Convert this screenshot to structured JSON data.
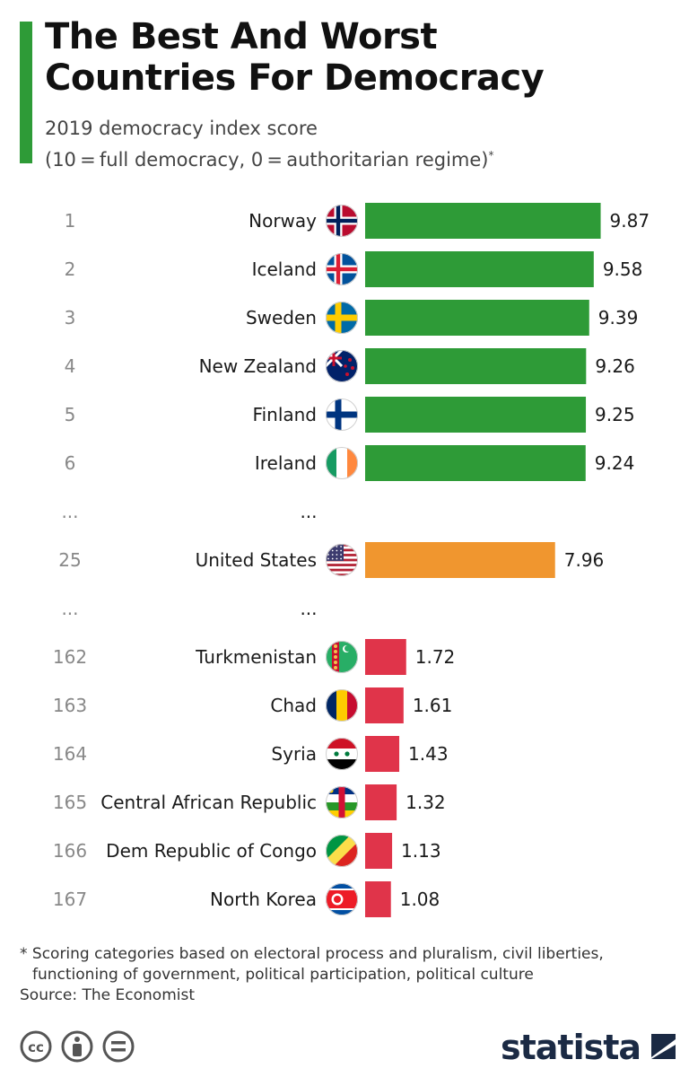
{
  "header": {
    "title_line1": "The Best And Worst",
    "title_line2": "Countries For Democracy",
    "subtitle_line1": "2019 democracy index score",
    "subtitle_line2": "(10 = full democracy, 0 = authoritarian regime)",
    "subtitle_mark": "*"
  },
  "colors": {
    "accent": "#2e9b37",
    "best": "#2e9b37",
    "us": "#f0962f",
    "worst": "#e0344a",
    "rank_text": "#888888",
    "label_text": "#1a1a1a"
  },
  "chart_data": {
    "type": "bar",
    "orientation": "horizontal",
    "title": "The Best And Worst Countries For Democracy",
    "subtitle": "2019 democracy index score (10 = full democracy, 0 = authoritarian regime)*",
    "xlim": [
      0,
      10
    ],
    "grid": false,
    "rows": [
      {
        "kind": "bar",
        "rank": "1",
        "country": "Norway",
        "value": 9.87,
        "group": "best",
        "flag": "norway-flag-icon"
      },
      {
        "kind": "bar",
        "rank": "2",
        "country": "Iceland",
        "value": 9.58,
        "group": "best",
        "flag": "iceland-flag-icon"
      },
      {
        "kind": "bar",
        "rank": "3",
        "country": "Sweden",
        "value": 9.39,
        "group": "best",
        "flag": "sweden-flag-icon"
      },
      {
        "kind": "bar",
        "rank": "4",
        "country": "New Zealand",
        "value": 9.26,
        "group": "best",
        "flag": "new-zealand-flag-icon"
      },
      {
        "kind": "bar",
        "rank": "5",
        "country": "Finland",
        "value": 9.25,
        "group": "best",
        "flag": "finland-flag-icon"
      },
      {
        "kind": "bar",
        "rank": "6",
        "country": "Ireland",
        "value": 9.24,
        "group": "best",
        "flag": "ireland-flag-icon"
      },
      {
        "kind": "gap",
        "rank": "...",
        "country": "..."
      },
      {
        "kind": "bar",
        "rank": "25",
        "country": "United States",
        "value": 7.96,
        "group": "us",
        "flag": "united-states-flag-icon"
      },
      {
        "kind": "gap",
        "rank": "...",
        "country": "..."
      },
      {
        "kind": "bar",
        "rank": "162",
        "country": "Turkmenistan",
        "value": 1.72,
        "group": "worst",
        "flag": "turkmenistan-flag-icon"
      },
      {
        "kind": "bar",
        "rank": "163",
        "country": "Chad",
        "value": 1.61,
        "group": "worst",
        "flag": "chad-flag-icon"
      },
      {
        "kind": "bar",
        "rank": "164",
        "country": "Syria",
        "value": 1.43,
        "group": "worst",
        "flag": "syria-flag-icon"
      },
      {
        "kind": "bar",
        "rank": "165",
        "country": "Central African Republic",
        "value": 1.32,
        "group": "worst",
        "flag": "central-african-republic-flag-icon"
      },
      {
        "kind": "bar",
        "rank": "166",
        "country": "Dem Republic of Congo",
        "value": 1.13,
        "group": "worst",
        "flag": "congo-flag-icon"
      },
      {
        "kind": "bar",
        "rank": "167",
        "country": "North Korea",
        "value": 1.08,
        "group": "worst",
        "flag": "north-korea-flag-icon"
      }
    ]
  },
  "footnote": {
    "line1": "* Scoring categories based on electoral process and pluralism, civil liberties,",
    "line2": "functioning of government, political participation, political culture",
    "source": "Source: The Economist"
  },
  "footer": {
    "brand": "statista",
    "license_icons": [
      "creative-commons-icon",
      "attribution-icon",
      "no-derivatives-icon"
    ]
  }
}
